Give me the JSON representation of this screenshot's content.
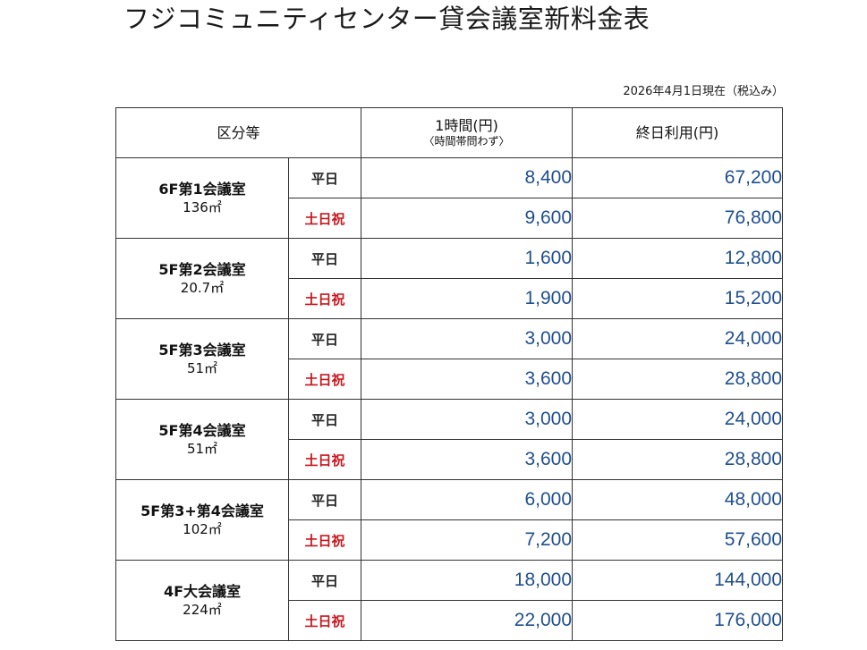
{
  "document": {
    "title": "フジコミュニティセンター貸会議室新料金表",
    "as_of": "2026年4月1日現在（税込み）"
  },
  "colors": {
    "price_text": "#1f4f8e",
    "holiday_text": "#c8171e",
    "rule_lines": "#333333"
  },
  "table": {
    "headers": {
      "category": "区分等",
      "hourly_label": "1時間(円)",
      "hourly_note": "〈時間帯問わず〉",
      "full_day": "終日利用(円)"
    },
    "rooms": [
      {
        "name": "6F第1会議室",
        "area": "136㎡",
        "rates": [
          {
            "day": "平日",
            "hourly": "8,400",
            "full_day": "67,200"
          },
          {
            "day": "土日祝",
            "hourly": "9,600",
            "full_day": "76,800"
          }
        ]
      },
      {
        "name": "5F第2会議室",
        "area": "20.7㎡",
        "rates": [
          {
            "day": "平日",
            "hourly": "1,600",
            "full_day": "12,800"
          },
          {
            "day": "土日祝",
            "hourly": "1,900",
            "full_day": "15,200"
          }
        ]
      },
      {
        "name": "5F第3会議室",
        "area": "51㎡",
        "rates": [
          {
            "day": "平日",
            "hourly": "3,000",
            "full_day": "24,000"
          },
          {
            "day": "土日祝",
            "hourly": "3,600",
            "full_day": "28,800"
          }
        ]
      },
      {
        "name": "5F第4会議室",
        "area": "51㎡",
        "rates": [
          {
            "day": "平日",
            "hourly": "3,000",
            "full_day": "24,000"
          },
          {
            "day": "土日祝",
            "hourly": "3,600",
            "full_day": "28,800"
          }
        ]
      },
      {
        "name": "5F第3+第4会議室",
        "area": "102㎡",
        "rates": [
          {
            "day": "平日",
            "hourly": "6,000",
            "full_day": "48,000"
          },
          {
            "day": "土日祝",
            "hourly": "7,200",
            "full_day": "57,600"
          }
        ]
      },
      {
        "name": "4F大会議室",
        "area": "224㎡",
        "rates": [
          {
            "day": "平日",
            "hourly": "18,000",
            "full_day": "144,000"
          },
          {
            "day": "土日祝",
            "hourly": "22,000",
            "full_day": "176,000"
          }
        ]
      }
    ]
  }
}
